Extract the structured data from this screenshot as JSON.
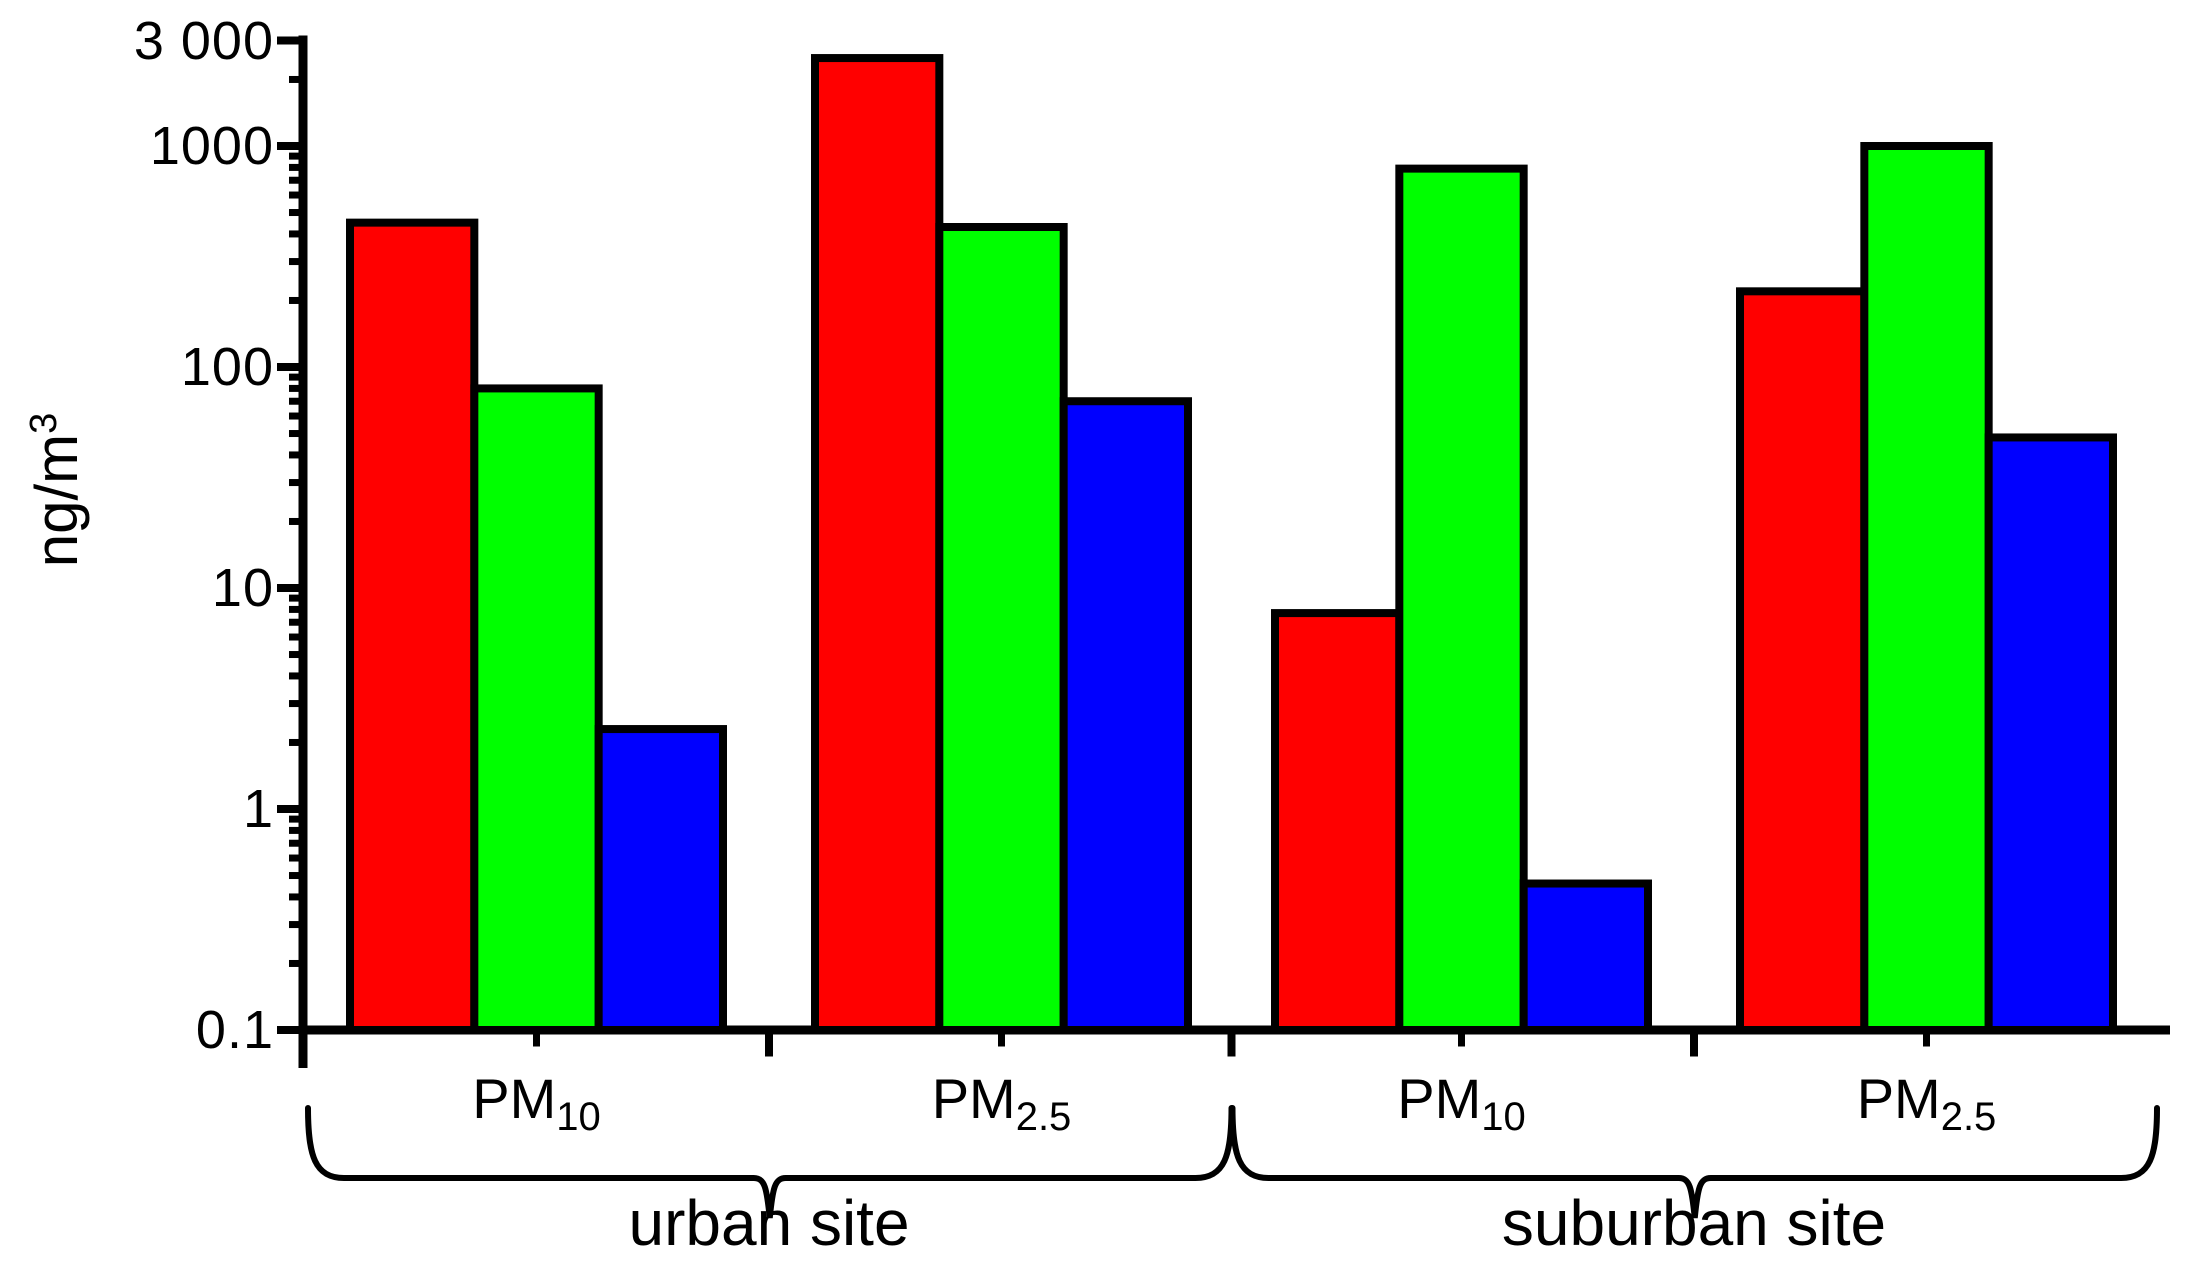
{
  "chart_data": {
    "type": "bar",
    "title": "",
    "yscale": "log",
    "ylabel": "ng/m³",
    "ylabel_parts": {
      "base": "ng/m",
      "sup": "3"
    },
    "ylim": [
      0.1,
      3000
    ],
    "grid": false,
    "legend": "none",
    "background": "#ffffff",
    "axis_color": "#000000",
    "bar_outline_color": "#000000",
    "yticks": [
      {
        "value": 3000,
        "label": "3 000"
      },
      {
        "value": 1000,
        "label": "1000"
      },
      {
        "value": 100,
        "label": "100"
      },
      {
        "value": 10,
        "label": "10"
      },
      {
        "value": 1,
        "label": "1"
      },
      {
        "value": 0.1,
        "label": "0.1"
      }
    ],
    "categories": [
      {
        "base": "PM",
        "sub": "10",
        "site": "urban"
      },
      {
        "base": "PM",
        "sub": "2.5",
        "site": "urban"
      },
      {
        "base": "PM",
        "sub": "10",
        "site": "suburban"
      },
      {
        "base": "PM",
        "sub": "2.5",
        "site": "suburban"
      }
    ],
    "site_groups": [
      {
        "label": "urban site",
        "categories": [
          0,
          1
        ]
      },
      {
        "label": "suburban site",
        "categories": [
          2,
          3
        ]
      }
    ],
    "series": [
      {
        "name": "red",
        "color": "#ff0000",
        "values": [
          450,
          2500,
          7.7,
          220
        ]
      },
      {
        "name": "green",
        "color": "#00ff00",
        "values": [
          80,
          430,
          790,
          1000
        ]
      },
      {
        "name": "blue",
        "color": "#0000ff",
        "values": [
          2.3,
          70,
          0.46,
          48
        ]
      }
    ]
  }
}
